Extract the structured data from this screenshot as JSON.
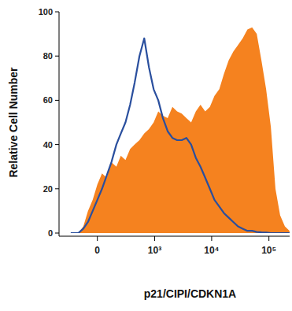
{
  "chart_data": {
    "type": "area",
    "x_label": "p21/CIPI/CDKN1A",
    "y_label": "Relative Cell Number",
    "x": [
      -260,
      -170,
      -120,
      -78,
      -38,
      0,
      38,
      78,
      120,
      170,
      220,
      280,
      350,
      430,
      530,
      650,
      790,
      960,
      1160,
      1400,
      1700,
      2060,
      2490,
      3000,
      3620,
      4380,
      5290,
      6380,
      7720,
      9310,
      11200,
      13600,
      16400,
      19800,
      23900,
      28800,
      34800,
      42100,
      50800,
      61300,
      74000,
      89300,
      108000,
      130000,
      157000,
      190000,
      229000
    ],
    "series": [
      {
        "type": "area",
        "color": "#f5821f",
        "values": [
          0,
          0,
          3,
          10,
          15,
          22,
          27,
          25,
          32,
          30,
          35,
          33,
          38,
          40,
          42,
          45,
          47,
          50,
          55,
          53,
          52,
          57,
          55,
          54,
          52,
          50,
          55,
          58,
          55,
          57,
          62,
          65,
          72,
          78,
          82,
          85,
          88,
          92,
          93,
          90,
          78,
          65,
          48,
          20,
          8,
          3,
          1
        ]
      },
      {
        "type": "line",
        "color": "#2a4f9e",
        "values": [
          0,
          0,
          2,
          5,
          10,
          15,
          20,
          26,
          32,
          40,
          45,
          50,
          58,
          68,
          80,
          88,
          75,
          65,
          60,
          52,
          46,
          43,
          42,
          42,
          43,
          40,
          34,
          30,
          25,
          20,
          15,
          12,
          9,
          7,
          5,
          3,
          2,
          1,
          1,
          0.5,
          0.3,
          0.2,
          0,
          0,
          0,
          0,
          0
        ]
      }
    ],
    "xlim": [
      -450,
      230000
    ],
    "xticks": [
      0,
      {
        "value": 1000,
        "label": "10³"
      },
      {
        "value": 10000,
        "label": "10⁴"
      },
      {
        "value": 100000,
        "label": "10⁵"
      }
    ],
    "ylim": [
      0,
      100
    ],
    "yticks": [
      0,
      20,
      40,
      60,
      80,
      100
    ],
    "grid": false
  }
}
